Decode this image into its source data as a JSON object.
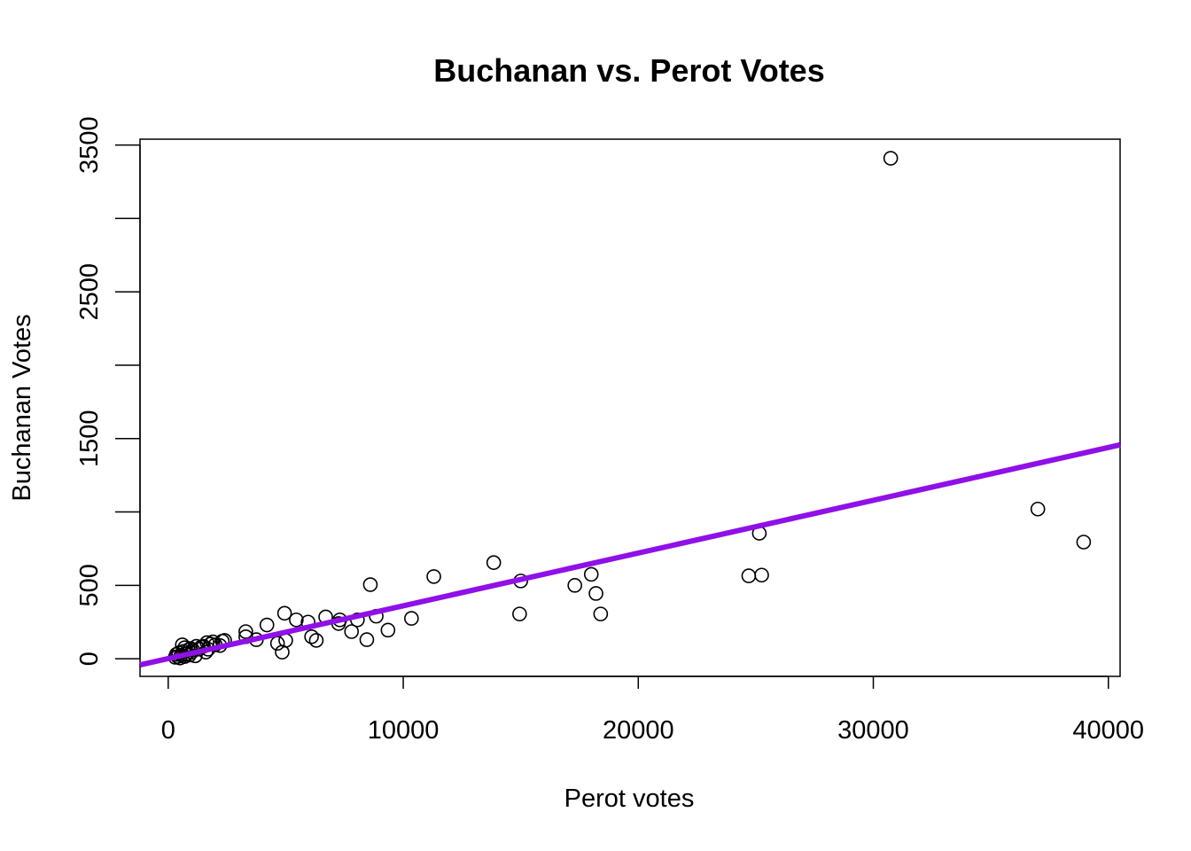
{
  "chart_data": {
    "type": "scatter",
    "title": "Buchanan vs. Perot Votes",
    "xlabel": "Perot votes",
    "ylabel": "Buchanan Votes",
    "xlim": [
      -1200,
      40500
    ],
    "ylim": [
      -120,
      3540
    ],
    "x_ticks": [
      0,
      10000,
      20000,
      30000,
      40000
    ],
    "x_tick_labels": [
      "0",
      "10000",
      "20000",
      "30000",
      "40000"
    ],
    "y_ticks": [
      0,
      500,
      1000,
      1500,
      2000,
      2500,
      3000,
      3500
    ],
    "y_tick_labels": [
      "0",
      "500",
      "",
      "1500",
      "",
      "2500",
      "",
      "3500"
    ],
    "grid": false,
    "legend": "none",
    "point_color": "#000000",
    "line_color": "#9010e8",
    "points": [
      [
        30740,
        3410
      ],
      [
        37000,
        1020
      ],
      [
        38950,
        795
      ],
      [
        25150,
        855
      ],
      [
        24700,
        565
      ],
      [
        25250,
        570
      ],
      [
        17300,
        500
      ],
      [
        18000,
        575
      ],
      [
        18200,
        445
      ],
      [
        18400,
        305
      ],
      [
        15000,
        530
      ],
      [
        14950,
        305
      ],
      [
        13850,
        655
      ],
      [
        11300,
        560
      ],
      [
        10350,
        275
      ],
      [
        9350,
        195
      ],
      [
        8850,
        290
      ],
      [
        8600,
        505
      ],
      [
        8450,
        130
      ],
      [
        8050,
        265
      ],
      [
        7800,
        185
      ],
      [
        7300,
        265
      ],
      [
        7250,
        240
      ],
      [
        6700,
        285
      ],
      [
        6300,
        125
      ],
      [
        6100,
        150
      ],
      [
        5950,
        250
      ],
      [
        5450,
        265
      ],
      [
        5000,
        125
      ],
      [
        4950,
        310
      ],
      [
        4850,
        45
      ],
      [
        4650,
        105
      ],
      [
        4200,
        230
      ],
      [
        3750,
        130
      ],
      [
        3300,
        150
      ],
      [
        3300,
        185
      ],
      [
        2400,
        125
      ],
      [
        2300,
        120
      ],
      [
        2200,
        90
      ],
      [
        2000,
        95
      ],
      [
        1900,
        115
      ],
      [
        1800,
        100
      ],
      [
        1700,
        65
      ],
      [
        1650,
        110
      ],
      [
        1600,
        45
      ],
      [
        1500,
        85
      ],
      [
        1400,
        80
      ],
      [
        1300,
        65
      ],
      [
        1200,
        85
      ],
      [
        1150,
        20
      ],
      [
        1050,
        60
      ],
      [
        1000,
        45
      ],
      [
        950,
        70
      ],
      [
        850,
        60
      ],
      [
        800,
        35
      ],
      [
        700,
        75
      ],
      [
        650,
        50
      ],
      [
        600,
        95
      ],
      [
        550,
        25
      ],
      [
        500,
        5
      ],
      [
        450,
        40
      ],
      [
        400,
        15
      ],
      [
        350,
        30
      ],
      [
        300,
        10
      ],
      [
        700,
        15
      ],
      [
        900,
        25
      ]
    ],
    "regression_line": {
      "intercept": 1.35,
      "slope": 0.03595
    }
  }
}
